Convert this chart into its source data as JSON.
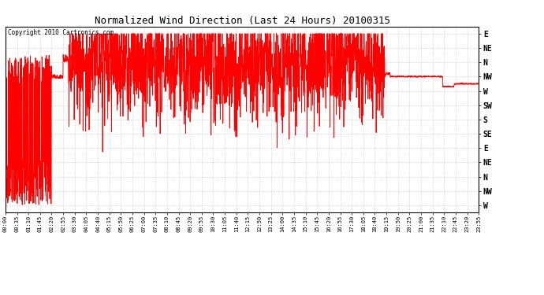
{
  "title": "Normalized Wind Direction (Last 24 Hours) 20100315",
  "copyright_text": "Copyright 2010 Cartronics.com",
  "line_color": "#FF0000",
  "bg_color": "#FFFFFF",
  "grid_color": "#AAAAAA",
  "ytick_labels": [
    "E",
    "NE",
    "N",
    "NW",
    "W",
    "SW",
    "S",
    "SE",
    "E",
    "NE",
    "N",
    "NW",
    "W"
  ],
  "ytick_values": [
    12,
    11,
    10,
    9,
    8,
    7,
    6,
    5,
    4,
    3,
    2,
    1,
    0
  ],
  "ylim": [
    -0.5,
    12.5
  ],
  "xtick_labels": [
    "00:00",
    "00:35",
    "01:10",
    "01:45",
    "02:20",
    "02:55",
    "03:30",
    "04:05",
    "04:40",
    "05:15",
    "05:50",
    "06:25",
    "07:00",
    "07:35",
    "08:10",
    "08:45",
    "09:20",
    "09:55",
    "10:30",
    "11:05",
    "11:40",
    "12:15",
    "12:50",
    "13:25",
    "14:00",
    "14:35",
    "15:10",
    "15:45",
    "16:20",
    "16:55",
    "17:30",
    "18:05",
    "18:40",
    "19:15",
    "19:50",
    "20:25",
    "21:00",
    "21:35",
    "22:10",
    "22:45",
    "23:20",
    "23:55"
  ],
  "figsize": [
    6.9,
    3.75
  ],
  "dpi": 100
}
